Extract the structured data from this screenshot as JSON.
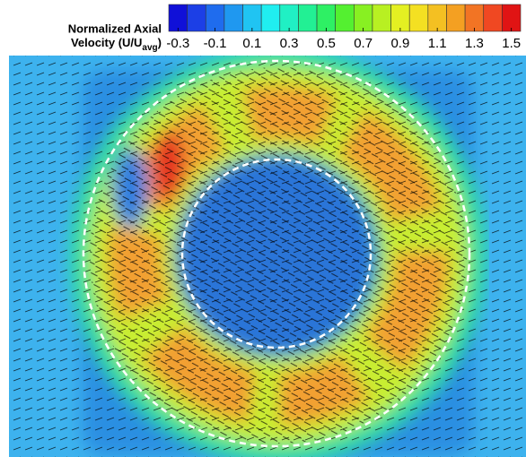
{
  "chart_data": {
    "type": "contour",
    "colorbar": {
      "label_line1": "Normalized Axial",
      "label_line2": "Velocity (U/U",
      "label_subscript": "avg",
      "label_close": ")",
      "ticks": [
        -0.3,
        -0.1,
        0.1,
        0.3,
        0.5,
        0.7,
        0.9,
        1.1,
        1.3,
        1.5
      ],
      "colors": [
        "#1010d8",
        "#1c3fe6",
        "#1f6cee",
        "#1f98f0",
        "#20c4f2",
        "#20eef0",
        "#20f0c4",
        "#22f094",
        "#2ef064",
        "#54f030",
        "#88f022",
        "#b8f022",
        "#e4f022",
        "#f4e022",
        "#f4c022",
        "#f4a022",
        "#f27424",
        "#f04822",
        "#e01414"
      ]
    }
  }
}
